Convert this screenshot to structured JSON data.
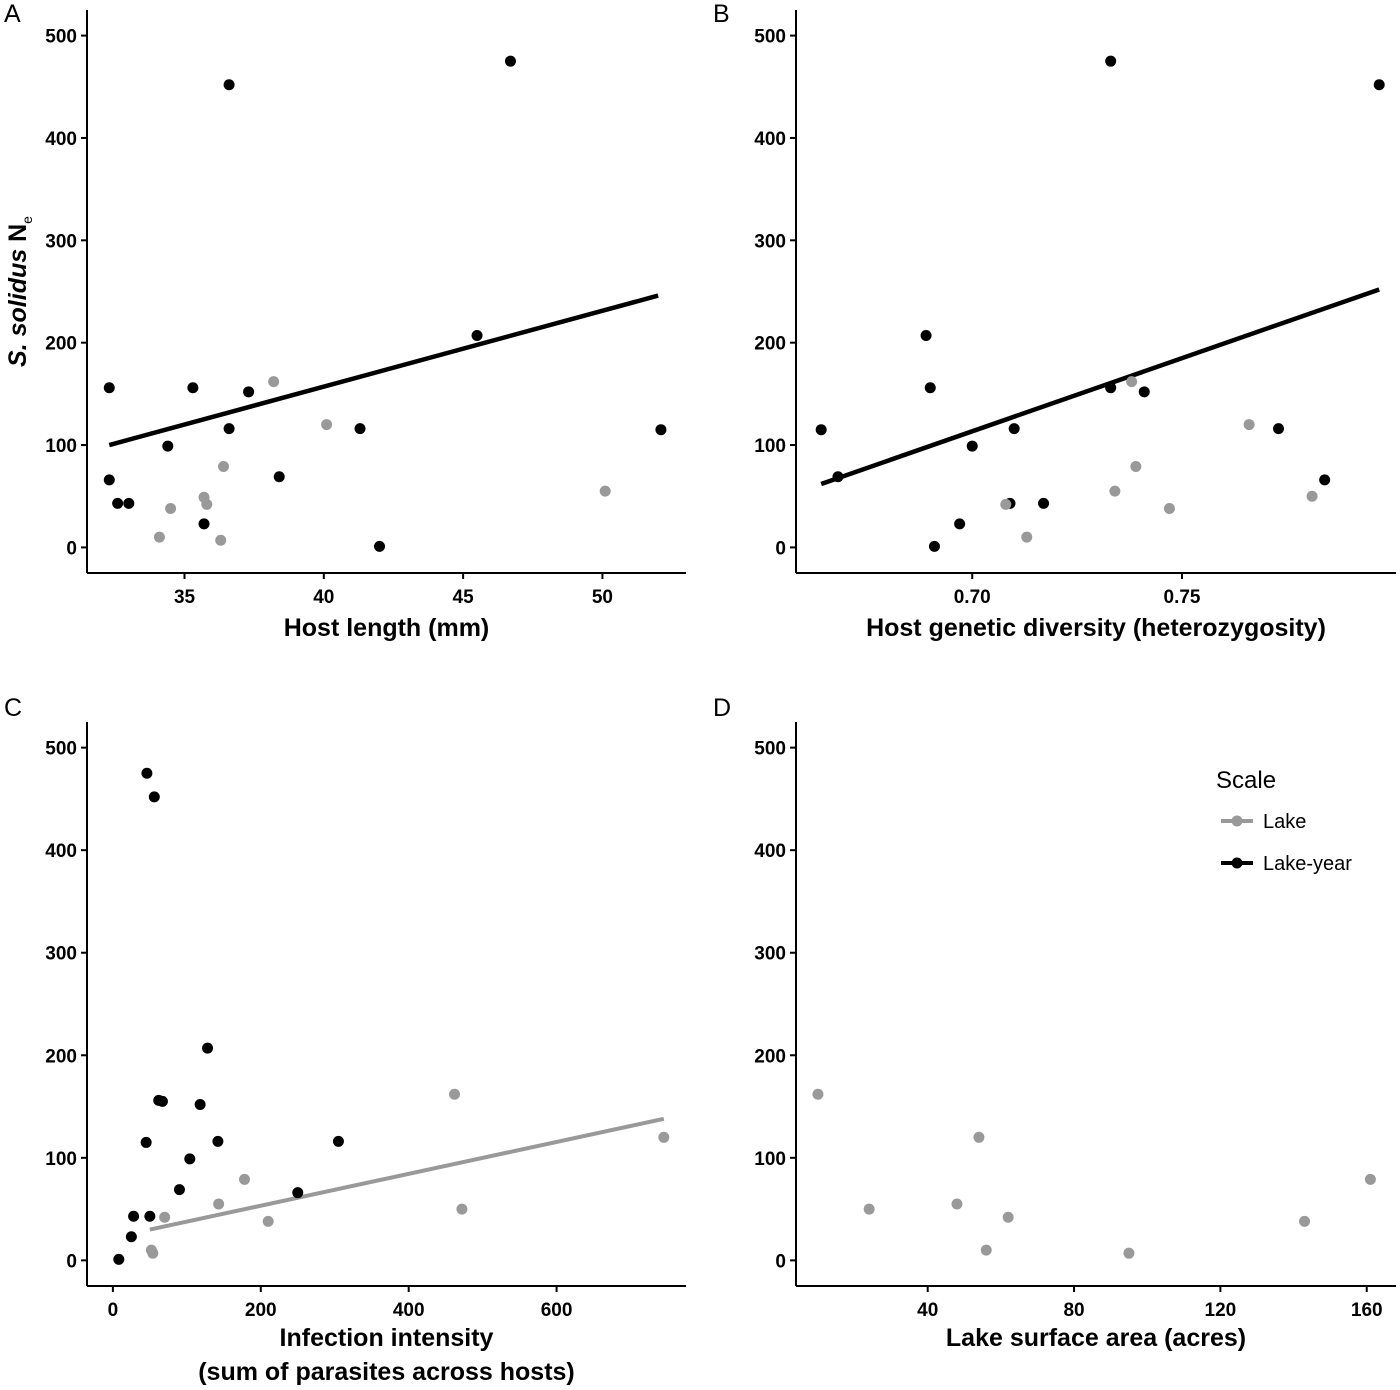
{
  "colors": {
    "lake": "#999999",
    "lake_year": "#000000"
  },
  "legend": {
    "title": "Scale",
    "entries": [
      {
        "key": "lake",
        "label": "Lake"
      },
      {
        "key": "lake_year",
        "label": "Lake-year"
      }
    ]
  },
  "chart_data": [
    {
      "panel": "A",
      "type": "scatter",
      "xlabel": [
        "Host length (mm)"
      ],
      "ylabel": "N",
      "ylabel_italic": "S. solidus",
      "ylabel_sub": "e",
      "xlim": [
        31.5,
        53.0
      ],
      "ylim": [
        -25,
        525
      ],
      "xticks": [
        35,
        40,
        45,
        50
      ],
      "yticks": [
        0,
        100,
        200,
        300,
        400,
        500
      ],
      "fit": {
        "series": "lake_year",
        "x": [
          32.3,
          52.0
        ],
        "y": [
          100,
          246
        ]
      },
      "series": [
        {
          "key": "lake_year",
          "name": "Lake-year",
          "points": [
            [
              32.3,
              156
            ],
            [
              32.3,
              66
            ],
            [
              32.6,
              43
            ],
            [
              33.0,
              43
            ],
            [
              34.4,
              99
            ],
            [
              35.3,
              156
            ],
            [
              35.7,
              23
            ],
            [
              36.6,
              452
            ],
            [
              36.6,
              116
            ],
            [
              37.3,
              152
            ],
            [
              38.4,
              69
            ],
            [
              41.3,
              116
            ],
            [
              42.0,
              1
            ],
            [
              45.5,
              207
            ],
            [
              46.7,
              475
            ],
            [
              52.1,
              115
            ]
          ]
        },
        {
          "key": "lake",
          "name": "Lake",
          "points": [
            [
              34.1,
              10
            ],
            [
              34.5,
              38
            ],
            [
              35.7,
              49
            ],
            [
              35.8,
              42
            ],
            [
              36.3,
              7
            ],
            [
              36.4,
              79
            ],
            [
              38.2,
              162
            ],
            [
              40.1,
              120
            ],
            [
              50.1,
              55
            ]
          ]
        }
      ]
    },
    {
      "panel": "B",
      "type": "scatter",
      "xlabel": [
        "Host genetic diversity (heterozygosity)"
      ],
      "ylim": [
        -25,
        525
      ],
      "xlim": [
        0.658,
        0.801
      ],
      "xticks": [
        0.7,
        0.75
      ],
      "xtick_labels": [
        "0.70",
        "0.75"
      ],
      "yticks": [
        0,
        100,
        200,
        300,
        400,
        500
      ],
      "fit": {
        "series": "lake_year",
        "x": [
          0.664,
          0.797
        ],
        "y": [
          62,
          252
        ]
      },
      "series": [
        {
          "key": "lake_year",
          "name": "Lake-year",
          "points": [
            [
              0.664,
              115
            ],
            [
              0.668,
              69
            ],
            [
              0.689,
              207
            ],
            [
              0.69,
              156
            ],
            [
              0.691,
              1
            ],
            [
              0.697,
              23
            ],
            [
              0.7,
              99
            ],
            [
              0.709,
              43
            ],
            [
              0.71,
              116
            ],
            [
              0.717,
              43
            ],
            [
              0.733,
              156
            ],
            [
              0.733,
              475
            ],
            [
              0.741,
              152
            ],
            [
              0.773,
              116
            ],
            [
              0.784,
              66
            ],
            [
              0.797,
              452
            ]
          ]
        },
        {
          "key": "lake",
          "name": "Lake",
          "points": [
            [
              0.708,
              42
            ],
            [
              0.713,
              10
            ],
            [
              0.734,
              55
            ],
            [
              0.738,
              162
            ],
            [
              0.739,
              79
            ],
            [
              0.747,
              38
            ],
            [
              0.766,
              120
            ],
            [
              0.781,
              50
            ]
          ]
        }
      ]
    },
    {
      "panel": "C",
      "type": "scatter",
      "xlabel": [
        "Infection intensity",
        "(sum of parasites across hosts)"
      ],
      "xlim": [
        -35,
        775
      ],
      "ylim": [
        -25,
        525
      ],
      "xticks": [
        0,
        200,
        400,
        600
      ],
      "yticks": [
        0,
        100,
        200,
        300,
        400,
        500
      ],
      "fit": {
        "series": "lake",
        "x": [
          50,
          745
        ],
        "y": [
          30,
          138
        ]
      },
      "series": [
        {
          "key": "lake_year",
          "name": "Lake-year",
          "points": [
            [
              8,
              1
            ],
            [
              25,
              23
            ],
            [
              28,
              43
            ],
            [
              45,
              115
            ],
            [
              46,
              475
            ],
            [
              50,
              43
            ],
            [
              56,
              452
            ],
            [
              62,
              156
            ],
            [
              67,
              155
            ],
            [
              90,
              69
            ],
            [
              104,
              99
            ],
            [
              118,
              152
            ],
            [
              128,
              207
            ],
            [
              142,
              116
            ],
            [
              250,
              66
            ],
            [
              305,
              116
            ]
          ]
        },
        {
          "key": "lake",
          "name": "Lake",
          "points": [
            [
              52,
              10
            ],
            [
              54,
              7
            ],
            [
              70,
              42
            ],
            [
              143,
              55
            ],
            [
              178,
              79
            ],
            [
              210,
              38
            ],
            [
              462,
              162
            ],
            [
              472,
              50
            ],
            [
              745,
              120
            ]
          ]
        }
      ]
    },
    {
      "panel": "D",
      "type": "scatter",
      "xlabel": [
        "Lake surface area (acres)"
      ],
      "xlim": [
        4,
        168
      ],
      "ylim": [
        -25,
        525
      ],
      "xticks": [
        40,
        80,
        120,
        160
      ],
      "yticks": [
        0,
        100,
        200,
        300,
        400,
        500
      ],
      "series": [
        {
          "key": "lake",
          "name": "Lake",
          "points": [
            [
              10,
              162
            ],
            [
              24,
              50
            ],
            [
              48,
              55
            ],
            [
              54,
              120
            ],
            [
              56,
              10
            ],
            [
              62,
              42
            ],
            [
              95,
              7
            ],
            [
              143,
              38
            ],
            [
              161,
              79
            ]
          ]
        }
      ]
    }
  ]
}
